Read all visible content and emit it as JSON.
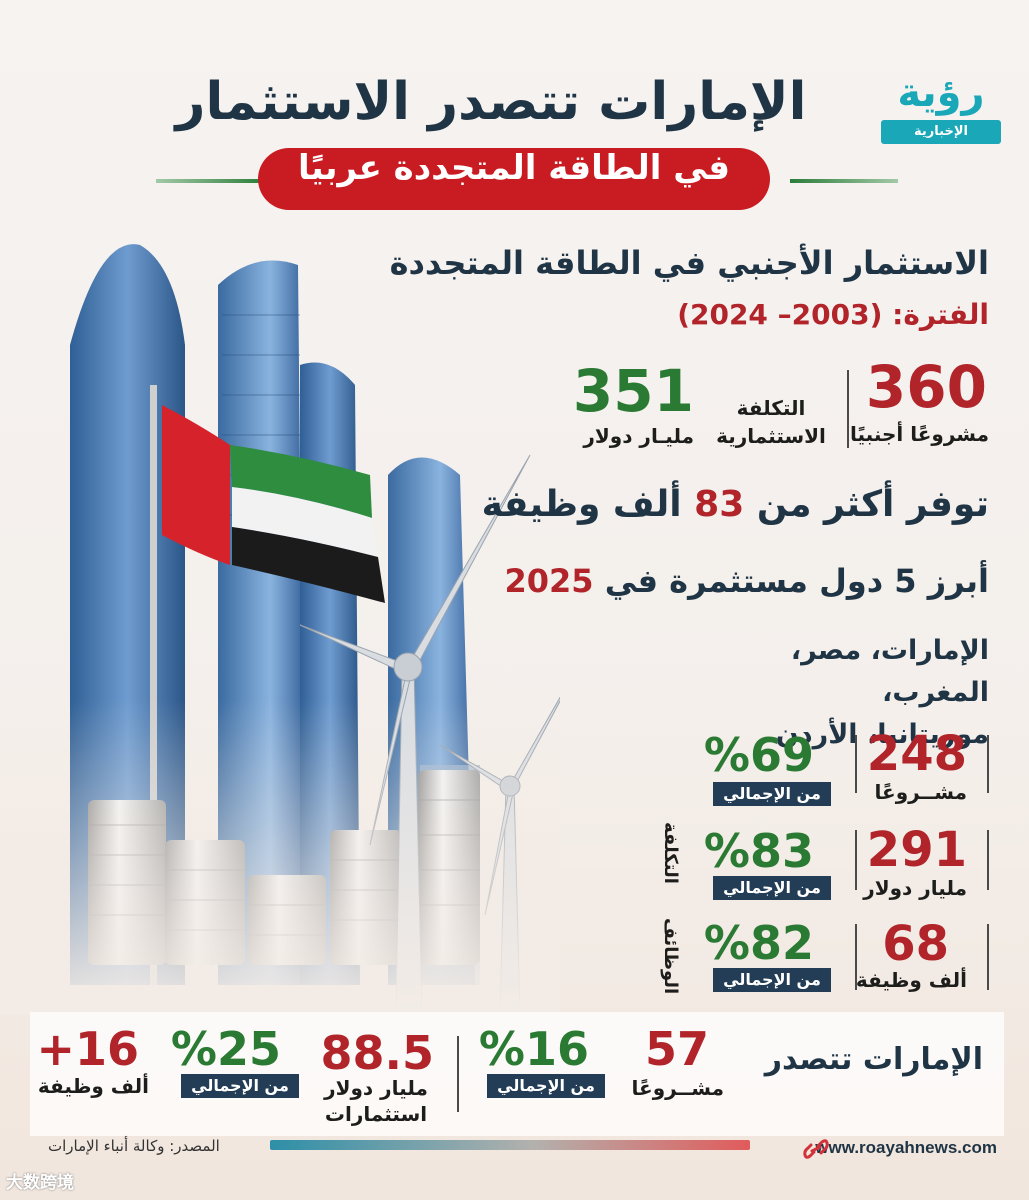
{
  "header": {
    "logo_main": "رؤية",
    "logo_band": "الإخبارية",
    "title": "الإمارات تتصدر الاستثمار",
    "subtitle": "في الطاقة المتجددة عربيًا"
  },
  "fdi": {
    "title": "الاستثمار الأجنبي في الطاقة المتجددة",
    "period": "الفترة: (2003– 2024)",
    "projects_value": "360",
    "projects_label": "مشروعًا أجنبيًا",
    "cost_label_line1": "التكلفة",
    "cost_label_line2": "الاستثمارية",
    "cost_value": "351",
    "cost_unit": "مليـار دولار"
  },
  "jobs": {
    "prefix": "توفر أكثر من ",
    "value": "83",
    "suffix": " ألف وظيفة"
  },
  "top5": {
    "prefix": "أبرز 5 دول مستثمرة في ",
    "year": "2025",
    "countries_line1": "الإمارات، مصر، المغرب،",
    "countries_line2": "موريتانيا، الأردن"
  },
  "shares": {
    "badge_text": "من الإجمالي",
    "side_label_cost": "التكلفة",
    "side_label_jobs": "الوظائف",
    "rows": [
      {
        "value": "248",
        "label": "مشــروعًا",
        "pct": "%69"
      },
      {
        "value": "291",
        "label": "مليار دولار",
        "pct": "%83"
      },
      {
        "value": "68",
        "label": "ألف وظيفة",
        "pct": "%82"
      }
    ]
  },
  "uae_leads": {
    "title": "الإمارات تتصدر",
    "projects_value": "57",
    "projects_label": "مشــروعًا",
    "projects_pct": "%16",
    "invest_value": "88.5",
    "invest_label_line1": "مليار دولار",
    "invest_label_line2": "استثمارات",
    "invest_pct": "%25",
    "jobs_value": "+16",
    "jobs_label": "ألف وظيفة",
    "badge_text": "من الإجمالي"
  },
  "footer": {
    "website": "www.roayahnews.com",
    "source": "المصدر: وكالة أنباء الإمارات",
    "watermark": "大数跨境"
  },
  "colors": {
    "navy": "#1f3444",
    "red": "#b0242a",
    "green": "#2b7a33",
    "teal": "#1aa7b8",
    "badge": "#223d55"
  }
}
